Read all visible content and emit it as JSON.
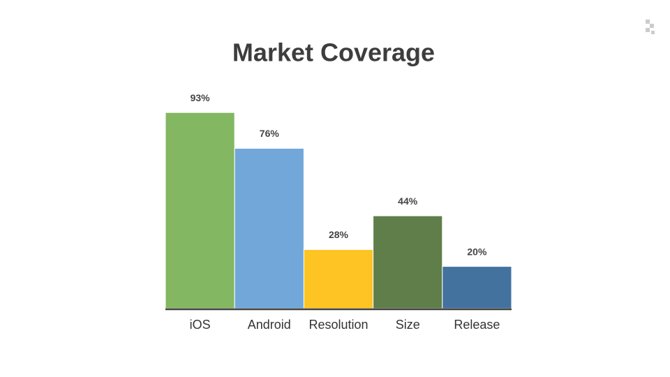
{
  "chart_data": {
    "type": "bar",
    "title": "Market Coverage",
    "categories": [
      "iOS",
      "Android",
      "Resolution",
      "Size",
      "Release"
    ],
    "values": [
      93,
      76,
      28,
      44,
      20
    ],
    "value_labels": [
      "93%",
      "76%",
      "28%",
      "44%",
      "20%"
    ],
    "colors": [
      "#84b762",
      "#72a7d9",
      "#fdc424",
      "#5f7e4a",
      "#44729f"
    ]
  }
}
